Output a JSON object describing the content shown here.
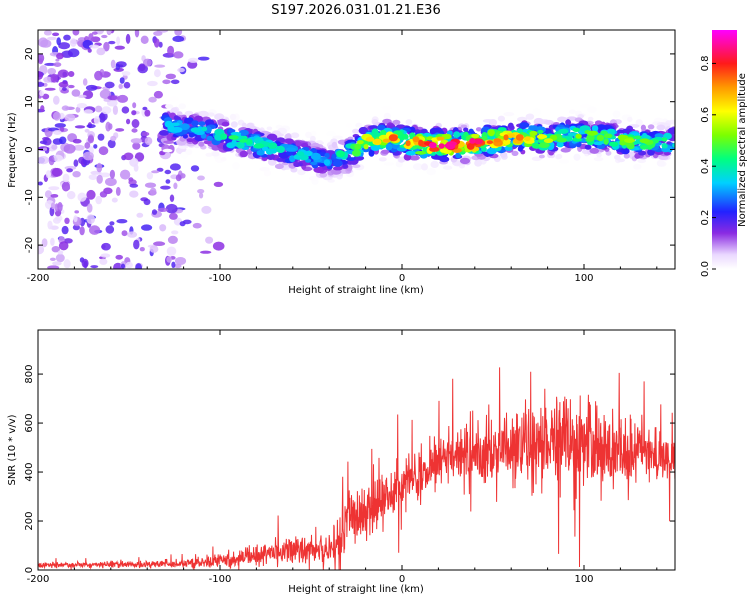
{
  "figure_title": "S197.2026.031.01.21.E36",
  "chart_data": [
    {
      "type": "heatmap",
      "title": "S197.2026.031.01.21.E36",
      "xlabel": "Height of straight line (km)",
      "ylabel": "Frequency (Hz)",
      "xlim": [
        -200,
        150
      ],
      "ylim": [
        -25,
        25
      ],
      "xticks": [
        "-200",
        "-100",
        "0",
        "100"
      ],
      "yticks": [
        "20",
        "10",
        "0",
        "-10",
        "-20"
      ],
      "colorbar": {
        "label": "Normalized spectral amplitude",
        "range": [
          0,
          0.93
        ],
        "ticks": [
          "0.0",
          "0.2",
          "0.4",
          "0.6",
          "0.8"
        ]
      },
      "ridge": {
        "x": [
          -130,
          -110,
          -90,
          -70,
          -50,
          -40,
          -30,
          -20,
          -10,
          0,
          10,
          20,
          30,
          40,
          50,
          60,
          70,
          80,
          90,
          100,
          110,
          120,
          130,
          140,
          150
        ],
        "freq": [
          5,
          4,
          2,
          0,
          -1.5,
          -2.5,
          -1,
          1.5,
          2.5,
          2,
          1,
          1,
          1,
          1.5,
          2,
          2.5,
          2.5,
          2,
          3,
          3,
          2.5,
          2,
          1.5,
          1.5,
          1.5
        ],
        "peak_amplitude": [
          0.35,
          0.35,
          0.45,
          0.4,
          0.35,
          0.3,
          0.45,
          0.6,
          0.75,
          0.7,
          0.75,
          0.85,
          0.85,
          0.8,
          0.75,
          0.7,
          0.65,
          0.55,
          0.5,
          0.5,
          0.5,
          0.55,
          0.5,
          0.45,
          0.45
        ]
      },
      "noise_region": {
        "x": [
          -200,
          -120
        ],
        "amplitude": 0.15
      }
    },
    {
      "type": "line",
      "xlabel": "Height of straight line (km)",
      "ylabel": "SNR (10 * v/v)",
      "xlim": [
        -200,
        150
      ],
      "ylim": [
        0,
        980
      ],
      "xticks": [
        "-200",
        "-100",
        "0",
        "100"
      ],
      "yticks": [
        "0",
        "200",
        "400",
        "600",
        "800"
      ],
      "series": [
        {
          "name": "SNR",
          "color": "#ee3333",
          "x": [
            -200,
            -180,
            -160,
            -140,
            -120,
            -100,
            -80,
            -60,
            -50,
            -40,
            -35,
            -30,
            -25,
            -20,
            -10,
            0,
            10,
            20,
            30,
            40,
            50,
            60,
            70,
            80,
            90,
            100,
            110,
            120,
            130,
            140,
            150
          ],
          "mean": [
            20,
            20,
            22,
            22,
            25,
            35,
            60,
            85,
            90,
            80,
            130,
            200,
            230,
            250,
            300,
            350,
            400,
            440,
            470,
            480,
            500,
            520,
            530,
            520,
            510,
            500,
            500,
            490,
            480,
            470,
            460
          ],
          "spread": [
            10,
            10,
            12,
            12,
            15,
            25,
            40,
            60,
            60,
            50,
            80,
            100,
            110,
            120,
            120,
            110,
            100,
            100,
            110,
            120,
            130,
            150,
            160,
            180,
            170,
            160,
            160,
            140,
            120,
            100,
            90
          ]
        }
      ]
    }
  ]
}
